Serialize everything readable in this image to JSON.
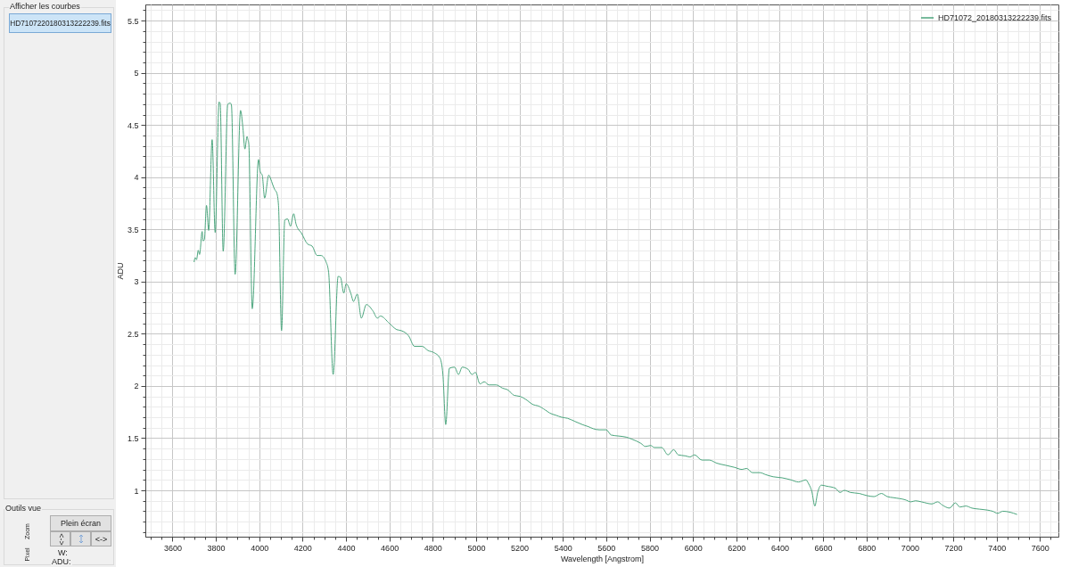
{
  "chart_data": [
    {
      "type": "other",
      "annotations": [
        "Afficher les courbes",
        "HD7107220180313222239.fits",
        "Outils vue",
        "Zoom",
        "Plein écran",
        "<->",
        "<->",
        "Pixel",
        "W:",
        "ADU:"
      ]
    },
    {
      "type": "line",
      "xlabel": "Wavelength [Angstrom]",
      "ylabel": "ADU",
      "legend": "top right",
      "grid": true,
      "xlim": [
        3475,
        7685
      ],
      "ylim": [
        0.556,
        5.655
      ],
      "xticks": [
        {
          "value": 3500,
          "label": null
        },
        {
          "value": 3550,
          "label": null
        },
        3600,
        {
          "value": 3650,
          "label": null
        },
        {
          "value": 3700,
          "label": null
        },
        {
          "value": 3750,
          "label": null
        },
        3800,
        {
          "value": 3850,
          "label": null
        },
        {
          "value": 3900,
          "label": null
        },
        {
          "value": 3950,
          "label": null
        },
        4000,
        {
          "value": 4050,
          "label": null
        },
        {
          "value": 4100,
          "label": null
        },
        {
          "value": 4150,
          "label": null
        },
        4200,
        {
          "value": 4250,
          "label": null
        },
        {
          "value": 4300,
          "label": null
        },
        {
          "value": 4350,
          "label": null
        },
        4400,
        {
          "value": 4450,
          "label": null
        },
        {
          "value": 4500,
          "label": null
        },
        {
          "value": 4550,
          "label": null
        },
        4600,
        {
          "value": 4650,
          "label": null
        },
        {
          "value": 4700,
          "label": null
        },
        {
          "value": 4750,
          "label": null
        },
        4800,
        {
          "value": 4850,
          "label": null
        },
        {
          "value": 4900,
          "label": null
        },
        {
          "value": 4950,
          "label": null
        },
        5000,
        {
          "value": 5050,
          "label": null
        },
        {
          "value": 5100,
          "label": null
        },
        {
          "value": 5150,
          "label": null
        },
        5200,
        {
          "value": 5250,
          "label": null
        },
        {
          "value": 5300,
          "label": null
        },
        {
          "value": 5350,
          "label": null
        },
        5400,
        {
          "value": 5450,
          "label": null
        },
        {
          "value": 5500,
          "label": null
        },
        {
          "value": 5550,
          "label": null
        },
        5600,
        {
          "value": 5650,
          "label": null
        },
        {
          "value": 5700,
          "label": null
        },
        {
          "value": 5750,
          "label": null
        },
        5800,
        {
          "value": 5850,
          "label": null
        },
        {
          "value": 5900,
          "label": null
        },
        {
          "value": 5950,
          "label": null
        },
        6000,
        {
          "value": 6050,
          "label": null
        },
        {
          "value": 6100,
          "label": null
        },
        {
          "value": 6150,
          "label": null
        },
        6200,
        {
          "value": 6250,
          "label": null
        },
        {
          "value": 6300,
          "label": null
        },
        {
          "value": 6350,
          "label": null
        },
        6400,
        {
          "value": 6450,
          "label": null
        },
        {
          "value": 6500,
          "label": null
        },
        {
          "value": 6550,
          "label": null
        },
        6600,
        {
          "value": 6650,
          "label": null
        },
        {
          "value": 6700,
          "label": null
        },
        {
          "value": 6750,
          "label": null
        },
        6800,
        {
          "value": 6850,
          "label": null
        },
        {
          "value": 6900,
          "label": null
        },
        {
          "value": 6950,
          "label": null
        },
        7000,
        {
          "value": 7050,
          "label": null
        },
        {
          "value": 7100,
          "label": null
        },
        {
          "value": 7150,
          "label": null
        },
        7200,
        {
          "value": 7250,
          "label": null
        },
        {
          "value": 7300,
          "label": null
        },
        {
          "value": 7350,
          "label": null
        },
        7400,
        {
          "value": 7450,
          "label": null
        },
        {
          "value": 7500,
          "label": null
        },
        {
          "value": 7550,
          "label": null
        },
        7600,
        {
          "value": 7650,
          "label": null
        }
      ],
      "yticks": [
        {
          "value": 0.6,
          "label": null
        },
        {
          "value": 0.7,
          "label": null
        },
        {
          "value": 0.8,
          "label": null
        },
        {
          "value": 0.9,
          "label": null
        },
        1,
        {
          "value": 1.1,
          "label": null
        },
        {
          "value": 1.2,
          "label": null
        },
        {
          "value": 1.3,
          "label": null
        },
        {
          "value": 1.4,
          "label": null
        },
        1.5,
        {
          "value": 1.6,
          "label": null
        },
        {
          "value": 1.7,
          "label": null
        },
        {
          "value": 1.8,
          "label": null
        },
        {
          "value": 1.9,
          "label": null
        },
        2,
        {
          "value": 2.1,
          "label": null
        },
        {
          "value": 2.2,
          "label": null
        },
        {
          "value": 2.3,
          "label": null
        },
        {
          "value": 2.4,
          "label": null
        },
        2.5,
        {
          "value": 2.6,
          "label": null
        },
        {
          "value": 2.7,
          "label": null
        },
        {
          "value": 2.8,
          "label": null
        },
        {
          "value": 2.9,
          "label": null
        },
        3,
        {
          "value": 3.1,
          "label": null
        },
        {
          "value": 3.2,
          "label": null
        },
        {
          "value": 3.3,
          "label": null
        },
        {
          "value": 3.4,
          "label": null
        },
        3.5,
        {
          "value": 3.6,
          "label": null
        },
        {
          "value": 3.7,
          "label": null
        },
        {
          "value": 3.8,
          "label": null
        },
        {
          "value": 3.9,
          "label": null
        },
        4,
        {
          "value": 4.1,
          "label": null
        },
        {
          "value": 4.2,
          "label": null
        },
        {
          "value": 4.3,
          "label": null
        },
        {
          "value": 4.4,
          "label": null
        },
        4.5,
        {
          "value": 4.6,
          "label": null
        },
        {
          "value": 4.7,
          "label": null
        },
        {
          "value": 4.8,
          "label": null
        },
        {
          "value": 4.9,
          "label": null
        },
        5,
        {
          "value": 5.1,
          "label": null
        },
        {
          "value": 5.2,
          "label": null
        },
        {
          "value": 5.3,
          "label": null
        },
        {
          "value": 5.4,
          "label": null
        },
        5.5,
        {
          "value": 5.6,
          "label": null
        }
      ],
      "x": [
        3700,
        3705,
        3711,
        3719,
        3725,
        3737,
        3741,
        3747,
        3757,
        3767,
        3783,
        3797,
        3815,
        3820,
        3834,
        3855,
        3867,
        3872,
        3889,
        3914,
        3925,
        3934,
        3944,
        3948,
        3952,
        3968,
        3997,
        4005,
        4014,
        4025,
        4044,
        4052,
        4062,
        4072,
        4081,
        4089,
        4103,
        4118,
        4131,
        4144,
        4159,
        4170,
        4196,
        4223,
        4244,
        4267,
        4285,
        4308,
        4320,
        4341,
        4364,
        4375,
        4390,
        4401,
        4422,
        4435,
        4452,
        4471,
        4494,
        4524,
        4545,
        4559,
        4600,
        4634,
        4655,
        4689,
        4716,
        4751,
        4778,
        4805,
        4833,
        4847,
        4860,
        4877,
        4901,
        4919,
        4936,
        4963,
        4981,
        4997,
        5018,
        5038,
        5059,
        5093,
        5121,
        5148,
        5175,
        5203,
        5230,
        5264,
        5285,
        5319,
        5340,
        5367,
        5395,
        5422,
        5456,
        5490,
        5518,
        5541,
        5568,
        5600,
        5623,
        5658,
        5692,
        5719,
        5760,
        5781,
        5805,
        5822,
        5856,
        5885,
        5911,
        5932,
        5966,
        5986,
        6007,
        6041,
        6075,
        6110,
        6151,
        6192,
        6226,
        6247,
        6274,
        6308,
        6336,
        6370,
        6411,
        6452,
        6486,
        6521,
        6534,
        6548,
        6562,
        6575,
        6592,
        6616,
        6657,
        6678,
        6698,
        6726,
        6767,
        6801,
        6835,
        6869,
        6896,
        6924,
        6978,
        7005,
        7026,
        7053,
        7101,
        7128,
        7149,
        7183,
        7210,
        7231,
        7258,
        7286,
        7320,
        7360,
        7381,
        7405,
        7429,
        7463,
        7493
      ],
      "series": [
        {
          "name": "HD71072_20180313222239.fits",
          "color": "#4ba57d",
          "values": [
            3.19,
            3.23,
            3.21,
            3.3,
            3.26,
            3.48,
            3.39,
            3.4,
            3.73,
            3.49,
            4.36,
            3.47,
            4.72,
            4.71,
            3.29,
            4.7,
            4.71,
            4.69,
            3.07,
            4.64,
            4.47,
            4.27,
            4.39,
            4.36,
            4.32,
            2.74,
            4.17,
            4.05,
            4.02,
            3.8,
            4.02,
            3.99,
            3.93,
            3.88,
            3.85,
            3.73,
            2.53,
            3.59,
            3.6,
            3.53,
            3.65,
            3.55,
            3.46,
            3.36,
            3.34,
            3.25,
            3.25,
            3.19,
            3.09,
            2.11,
            3.05,
            3.04,
            2.89,
            2.98,
            2.89,
            2.81,
            2.88,
            2.65,
            2.78,
            2.72,
            2.65,
            2.67,
            2.6,
            2.54,
            2.53,
            2.48,
            2.38,
            2.38,
            2.34,
            2.32,
            2.27,
            2.11,
            1.63,
            2.17,
            2.18,
            2.11,
            2.18,
            2.16,
            2.11,
            2.13,
            2.02,
            2.04,
            2.01,
            2.01,
            1.98,
            1.96,
            1.91,
            1.9,
            1.87,
            1.82,
            1.81,
            1.77,
            1.74,
            1.72,
            1.7,
            1.69,
            1.66,
            1.63,
            1.61,
            1.59,
            1.58,
            1.58,
            1.53,
            1.52,
            1.51,
            1.49,
            1.45,
            1.42,
            1.43,
            1.41,
            1.41,
            1.34,
            1.39,
            1.34,
            1.33,
            1.32,
            1.34,
            1.29,
            1.29,
            1.26,
            1.24,
            1.22,
            1.2,
            1.21,
            1.17,
            1.17,
            1.15,
            1.13,
            1.12,
            1.1,
            1.08,
            1.1,
            1.06,
            0.99,
            0.85,
            0.98,
            1.05,
            1.04,
            1.02,
            0.98,
            1.0,
            0.98,
            0.97,
            0.95,
            0.94,
            0.97,
            0.94,
            0.93,
            0.91,
            0.89,
            0.9,
            0.89,
            0.87,
            0.89,
            0.86,
            0.83,
            0.88,
            0.84,
            0.85,
            0.83,
            0.82,
            0.81,
            0.8,
            0.78,
            0.8,
            0.79,
            0.77
          ]
        }
      ]
    }
  ]
}
